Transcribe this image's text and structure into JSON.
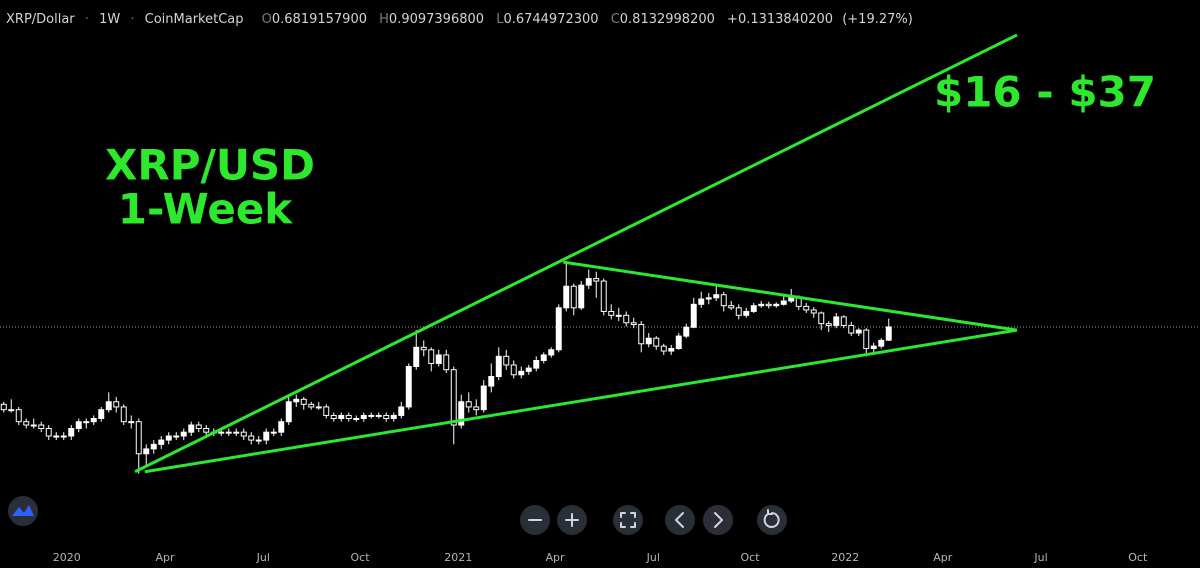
{
  "header": {
    "symbol": "XRP/Dollar",
    "separator": "·",
    "interval": "1W",
    "source": "CoinMarketCap",
    "ohlc": [
      {
        "label": "O",
        "value": "0.6819157900"
      },
      {
        "label": "H",
        "value": "0.9097396800"
      },
      {
        "label": "L",
        "value": "0.6744972300"
      },
      {
        "label": "C",
        "value": "0.8132998200"
      }
    ],
    "change": "+0.1313840200",
    "change_percent": "(+19.27%)"
  },
  "chart_data": {
    "type": "candlestick",
    "log_scale": true,
    "ylim": [
      0.0475,
      63.6
    ],
    "xlim": [
      -0.5,
      159.5
    ],
    "candle_color": "#ffffff",
    "line_color": "#2ee82e",
    "annotations": [
      "XRP/USD",
      "1-Week",
      "$16 - $37"
    ],
    "xticks": [
      {
        "value": 8.4,
        "label": "2020"
      },
      {
        "value": 21.5,
        "label": "Apr"
      },
      {
        "value": 34.6,
        "label": "Jul"
      },
      {
        "value": 47.5,
        "label": "Oct"
      },
      {
        "value": 60.6,
        "label": "2021"
      },
      {
        "value": 73.5,
        "label": "Apr"
      },
      {
        "value": 86.6,
        "label": "Jul"
      },
      {
        "value": 99.5,
        "label": "Oct"
      },
      {
        "value": 112.2,
        "label": "2022"
      },
      {
        "value": 125.2,
        "label": "Apr"
      },
      {
        "value": 138.3,
        "label": "Jul"
      },
      {
        "value": 151.2,
        "label": "Oct"
      }
    ],
    "trendlines": [
      {
        "x": [
          17.5,
          135.1
        ],
        "values": [
          0.118,
          39.9
        ]
      },
      {
        "x": [
          18.8,
          135.1
        ],
        "values": [
          0.118,
          0.78
        ]
      },
      {
        "x": [
          74.6,
          135.1
        ],
        "values": [
          1.93,
          0.78
        ]
      }
    ],
    "candles": [
      [
        0.29,
        0.3,
        0.26,
        0.27
      ],
      [
        0.27,
        0.31,
        0.26,
        0.27
      ],
      [
        0.27,
        0.28,
        0.22,
        0.23
      ],
      [
        0.23,
        0.24,
        0.21,
        0.22
      ],
      [
        0.22,
        0.24,
        0.21,
        0.22
      ],
      [
        0.22,
        0.23,
        0.2,
        0.21
      ],
      [
        0.21,
        0.22,
        0.18,
        0.19
      ],
      [
        0.19,
        0.2,
        0.18,
        0.19
      ],
      [
        0.19,
        0.2,
        0.18,
        0.19
      ],
      [
        0.19,
        0.22,
        0.18,
        0.21
      ],
      [
        0.21,
        0.24,
        0.2,
        0.23
      ],
      [
        0.23,
        0.24,
        0.21,
        0.23
      ],
      [
        0.23,
        0.25,
        0.22,
        0.24
      ],
      [
        0.24,
        0.28,
        0.23,
        0.27
      ],
      [
        0.27,
        0.34,
        0.26,
        0.3
      ],
      [
        0.3,
        0.32,
        0.26,
        0.28
      ],
      [
        0.28,
        0.29,
        0.22,
        0.23
      ],
      [
        0.23,
        0.25,
        0.21,
        0.23
      ],
      [
        0.23,
        0.24,
        0.115,
        0.15
      ],
      [
        0.15,
        0.17,
        0.13,
        0.16
      ],
      [
        0.16,
        0.18,
        0.15,
        0.17
      ],
      [
        0.17,
        0.19,
        0.16,
        0.18
      ],
      [
        0.18,
        0.2,
        0.17,
        0.19
      ],
      [
        0.19,
        0.2,
        0.18,
        0.19
      ],
      [
        0.19,
        0.21,
        0.18,
        0.2
      ],
      [
        0.2,
        0.23,
        0.19,
        0.22
      ],
      [
        0.22,
        0.23,
        0.2,
        0.21
      ],
      [
        0.21,
        0.22,
        0.19,
        0.2
      ],
      [
        0.2,
        0.21,
        0.19,
        0.2
      ],
      [
        0.2,
        0.21,
        0.19,
        0.2
      ],
      [
        0.2,
        0.21,
        0.19,
        0.2
      ],
      [
        0.2,
        0.21,
        0.19,
        0.2
      ],
      [
        0.2,
        0.21,
        0.18,
        0.19
      ],
      [
        0.19,
        0.2,
        0.17,
        0.18
      ],
      [
        0.18,
        0.19,
        0.17,
        0.18
      ],
      [
        0.18,
        0.21,
        0.17,
        0.2
      ],
      [
        0.2,
        0.21,
        0.19,
        0.2
      ],
      [
        0.2,
        0.24,
        0.19,
        0.23
      ],
      [
        0.23,
        0.32,
        0.22,
        0.3
      ],
      [
        0.3,
        0.33,
        0.28,
        0.31
      ],
      [
        0.31,
        0.32,
        0.27,
        0.29
      ],
      [
        0.29,
        0.3,
        0.27,
        0.28
      ],
      [
        0.28,
        0.3,
        0.27,
        0.28
      ],
      [
        0.28,
        0.29,
        0.24,
        0.25
      ],
      [
        0.25,
        0.26,
        0.23,
        0.24
      ],
      [
        0.24,
        0.26,
        0.23,
        0.25
      ],
      [
        0.25,
        0.26,
        0.23,
        0.24
      ],
      [
        0.24,
        0.25,
        0.23,
        0.24
      ],
      [
        0.24,
        0.26,
        0.23,
        0.25
      ],
      [
        0.25,
        0.26,
        0.24,
        0.25
      ],
      [
        0.25,
        0.26,
        0.24,
        0.25
      ],
      [
        0.25,
        0.26,
        0.23,
        0.24
      ],
      [
        0.24,
        0.26,
        0.23,
        0.25
      ],
      [
        0.25,
        0.3,
        0.24,
        0.28
      ],
      [
        0.28,
        0.5,
        0.27,
        0.48
      ],
      [
        0.48,
        0.78,
        0.46,
        0.62
      ],
      [
        0.62,
        0.68,
        0.55,
        0.6
      ],
      [
        0.6,
        0.62,
        0.45,
        0.5
      ],
      [
        0.5,
        0.6,
        0.48,
        0.56
      ],
      [
        0.56,
        0.6,
        0.44,
        0.46
      ],
      [
        0.46,
        0.48,
        0.17,
        0.22
      ],
      [
        0.22,
        0.33,
        0.21,
        0.3
      ],
      [
        0.3,
        0.34,
        0.26,
        0.28
      ],
      [
        0.28,
        0.31,
        0.25,
        0.27
      ],
      [
        0.27,
        0.4,
        0.26,
        0.37
      ],
      [
        0.37,
        0.5,
        0.34,
        0.42
      ],
      [
        0.42,
        0.62,
        0.4,
        0.55
      ],
      [
        0.55,
        0.6,
        0.46,
        0.49
      ],
      [
        0.49,
        0.52,
        0.41,
        0.43
      ],
      [
        0.43,
        0.48,
        0.41,
        0.45
      ],
      [
        0.45,
        0.49,
        0.43,
        0.47
      ],
      [
        0.47,
        0.55,
        0.45,
        0.52
      ],
      [
        0.52,
        0.58,
        0.5,
        0.56
      ],
      [
        0.56,
        0.62,
        0.54,
        0.6
      ],
      [
        0.6,
        1.1,
        0.58,
        1.05
      ],
      [
        1.05,
        1.96,
        1.0,
        1.4
      ],
      [
        1.4,
        1.45,
        0.95,
        1.05
      ],
      [
        1.05,
        1.5,
        1.02,
        1.42
      ],
      [
        1.42,
        1.75,
        1.35,
        1.55
      ],
      [
        1.55,
        1.7,
        1.2,
        1.5
      ],
      [
        1.5,
        1.55,
        0.95,
        1.0
      ],
      [
        1.0,
        1.1,
        0.9,
        0.95
      ],
      [
        0.95,
        1.05,
        0.88,
        0.95
      ],
      [
        0.95,
        1.0,
        0.82,
        0.86
      ],
      [
        0.86,
        0.92,
        0.8,
        0.84
      ],
      [
        0.84,
        0.88,
        0.58,
        0.65
      ],
      [
        0.65,
        0.75,
        0.62,
        0.7
      ],
      [
        0.7,
        0.72,
        0.6,
        0.63
      ],
      [
        0.63,
        0.65,
        0.56,
        0.59
      ],
      [
        0.59,
        0.64,
        0.56,
        0.61
      ],
      [
        0.61,
        0.75,
        0.6,
        0.72
      ],
      [
        0.72,
        0.85,
        0.7,
        0.81
      ],
      [
        0.81,
        1.2,
        0.8,
        1.1
      ],
      [
        1.1,
        1.3,
        1.05,
        1.18
      ],
      [
        1.18,
        1.28,
        1.1,
        1.2
      ],
      [
        1.2,
        1.4,
        1.15,
        1.25
      ],
      [
        1.25,
        1.3,
        1.0,
        1.08
      ],
      [
        1.08,
        1.15,
        1.02,
        1.05
      ],
      [
        1.05,
        1.1,
        0.9,
        0.95
      ],
      [
        0.95,
        1.05,
        0.92,
        1.0
      ],
      [
        1.0,
        1.12,
        0.98,
        1.08
      ],
      [
        1.08,
        1.15,
        1.05,
        1.1
      ],
      [
        1.1,
        1.14,
        1.04,
        1.08
      ],
      [
        1.08,
        1.13,
        1.05,
        1.1
      ],
      [
        1.1,
        1.22,
        1.08,
        1.15
      ],
      [
        1.15,
        1.35,
        1.12,
        1.2
      ],
      [
        1.2,
        1.24,
        1.02,
        1.07
      ],
      [
        1.07,
        1.12,
        0.98,
        1.02
      ],
      [
        1.02,
        1.06,
        0.92,
        0.98
      ],
      [
        0.98,
        1.0,
        0.78,
        0.85
      ],
      [
        0.85,
        0.88,
        0.76,
        0.83
      ],
      [
        0.83,
        0.98,
        0.8,
        0.93
      ],
      [
        0.93,
        0.95,
        0.8,
        0.83
      ],
      [
        0.83,
        0.87,
        0.72,
        0.75
      ],
      [
        0.75,
        0.8,
        0.72,
        0.78
      ],
      [
        0.78,
        0.8,
        0.55,
        0.61
      ],
      [
        0.61,
        0.66,
        0.58,
        0.63
      ],
      [
        0.63,
        0.7,
        0.61,
        0.68
      ],
      [
        0.68191579,
        0.90973968,
        0.67449723,
        0.81329982
      ]
    ]
  }
}
